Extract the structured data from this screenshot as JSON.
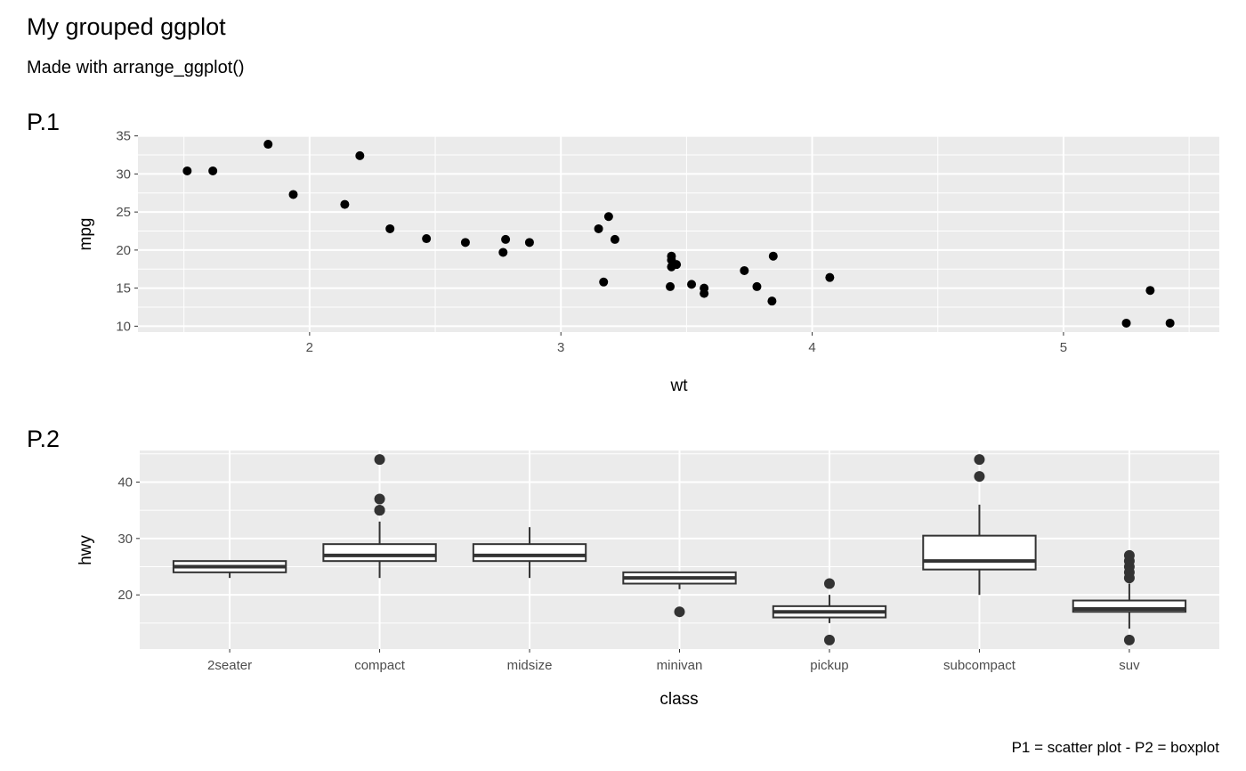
{
  "title": "My grouped ggplot",
  "subtitle": "Made with arrange_ggplot()",
  "caption": "P1 = scatter plot - P2 = boxplot",
  "colors": {
    "panel_bg": "#ebebeb",
    "grid": "#ffffff",
    "points": "#000000",
    "box_line": "#333333"
  },
  "chart_data": [
    {
      "tag": "P.1",
      "type": "scatter",
      "xlabel": "wt",
      "ylabel": "mpg",
      "xlim": [
        1.317,
        5.62
      ],
      "ylim": [
        9.225,
        35.075
      ],
      "xticks": [
        2,
        3,
        4,
        5
      ],
      "yticks": [
        10,
        15,
        20,
        25,
        30,
        35
      ],
      "grid": true,
      "x": [
        2.62,
        2.875,
        2.32,
        3.215,
        3.44,
        3.46,
        3.57,
        3.19,
        3.15,
        3.44,
        3.44,
        4.07,
        3.73,
        3.78,
        5.25,
        5.424,
        5.345,
        2.2,
        1.615,
        1.835,
        2.465,
        3.52,
        3.435,
        3.84,
        3.845,
        1.935,
        2.14,
        1.513,
        3.17,
        2.77,
        3.57,
        2.78
      ],
      "y": [
        21,
        21,
        22.8,
        21.4,
        18.7,
        18.1,
        14.3,
        24.4,
        22.8,
        19.2,
        17.8,
        16.4,
        17.3,
        15.2,
        10.4,
        10.4,
        14.7,
        32.4,
        30.4,
        33.9,
        21.5,
        15.5,
        15.2,
        13.3,
        19.2,
        27.3,
        26,
        30.4,
        15.8,
        19.7,
        15,
        21.4
      ]
    },
    {
      "tag": "P.2",
      "type": "boxplot",
      "xlabel": "class",
      "ylabel": "hwy",
      "ylim": [
        10.4,
        45.6
      ],
      "yticks": [
        20,
        30,
        40
      ],
      "grid": true,
      "categories": [
        "2seater",
        "compact",
        "midsize",
        "minivan",
        "pickup",
        "subcompact",
        "suv"
      ],
      "boxes": [
        {
          "lower_whisker": 23,
          "q1": 24,
          "median": 25,
          "q3": 26,
          "upper_whisker": 26,
          "outliers": []
        },
        {
          "lower_whisker": 23,
          "q1": 26,
          "median": 27,
          "q3": 29,
          "upper_whisker": 33,
          "outliers": [
            35,
            37,
            35,
            44
          ]
        },
        {
          "lower_whisker": 23,
          "q1": 26,
          "median": 27,
          "q3": 29,
          "upper_whisker": 32,
          "outliers": []
        },
        {
          "lower_whisker": 21,
          "q1": 22,
          "median": 23,
          "q3": 24,
          "upper_whisker": 24,
          "outliers": [
            17
          ]
        },
        {
          "lower_whisker": 15,
          "q1": 16,
          "median": 17,
          "q3": 18,
          "upper_whisker": 20,
          "outliers": [
            12,
            22
          ]
        },
        {
          "lower_whisker": 20,
          "q1": 24.5,
          "median": 26,
          "q3": 30.5,
          "upper_whisker": 36,
          "outliers": [
            44,
            41
          ]
        },
        {
          "lower_whisker": 14,
          "q1": 17,
          "median": 17.5,
          "q3": 19,
          "upper_whisker": 22,
          "outliers": [
            12,
            23,
            24,
            25,
            26,
            27
          ]
        }
      ]
    }
  ]
}
